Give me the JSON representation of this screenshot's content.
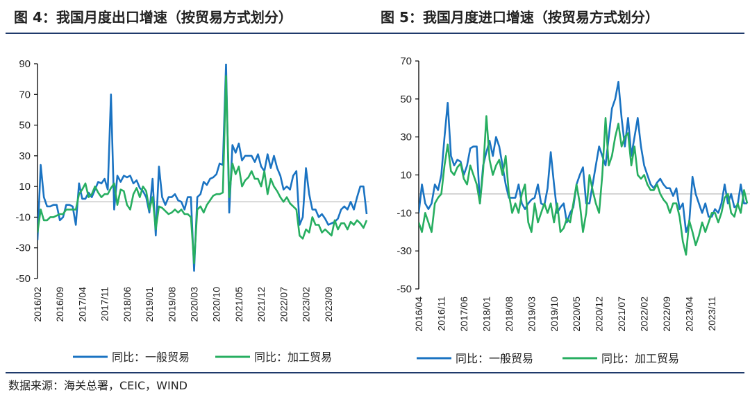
{
  "figure_left_title": "图 4：我国月度出口增速（按贸易方式划分）",
  "figure_right_title": "图 5：我国月度进口增速（按贸易方式划分）",
  "source": "数据来源：海关总署，CEIC，WIND",
  "colors": {
    "general": "#1a73c2",
    "processing": "#27ae60",
    "axis": "#000000",
    "zero": "#c8c8c8"
  },
  "chart_data": [
    {
      "type": "line",
      "title": "图 4：我国月度出口增速（按贸易方式划分）",
      "xlabel": "",
      "ylabel": "",
      "ylim": [
        -50,
        90
      ],
      "yticks": [
        90,
        70,
        50,
        30,
        10,
        -10,
        -30,
        -50
      ],
      "x_tick_labels": [
        "2016/02",
        "2016/09",
        "2017/04",
        "2017/11",
        "2018/06",
        "2019/01",
        "2019/08",
        "2020/03",
        "2020/10",
        "2021/05",
        "2021/12",
        "2022/07",
        "2023/02",
        "2023/09"
      ],
      "x_start": "2016/02",
      "grid": false,
      "legend": "bottom",
      "series": [
        {
          "name": "同比：一般贸易",
          "values": [
            -25,
            24,
            3,
            -3,
            -3,
            -2,
            -2,
            -12,
            -10,
            -2,
            -2,
            -3,
            -15,
            12,
            2,
            2,
            6,
            3,
            8,
            13,
            12,
            15,
            8,
            70,
            -5,
            17,
            13,
            17,
            16,
            17,
            12,
            14,
            9,
            7,
            3,
            -7,
            15,
            -22,
            23,
            3,
            -2,
            3,
            3,
            5,
            1,
            0,
            -5,
            3,
            3,
            -45,
            3,
            5,
            13,
            11,
            15,
            16,
            18,
            25,
            24,
            90,
            -7,
            37,
            32,
            38,
            27,
            30,
            30,
            30,
            26,
            31,
            23,
            20,
            31,
            22,
            30,
            22,
            17,
            8,
            10,
            8,
            17,
            20,
            -15,
            -10,
            22,
            5,
            -5,
            -5,
            -10,
            -8,
            -11,
            -15,
            -14,
            -13,
            -11,
            -5,
            -3,
            -5,
            0,
            -5,
            3,
            10,
            10,
            -8
          ]
        },
        {
          "name": "同比：加工贸易",
          "values": [
            -20,
            -5,
            -12,
            -12,
            -10,
            -10,
            -9,
            -8,
            -8,
            -5,
            -5,
            -5,
            -5,
            5,
            8,
            12,
            3,
            5,
            10,
            6,
            3,
            5,
            5,
            9,
            12,
            -2,
            8,
            7,
            -2,
            -5,
            5,
            9,
            3,
            10,
            7,
            -5,
            3,
            -18,
            -3,
            -4,
            -6,
            -8,
            -7,
            -5,
            -7,
            -5,
            -8,
            -8,
            -10,
            -40,
            -5,
            -3,
            -7,
            -2,
            1,
            4,
            5,
            5,
            6,
            82,
            3,
            25,
            18,
            23,
            10,
            14,
            16,
            20,
            15,
            15,
            10,
            20,
            5,
            15,
            10,
            7,
            3,
            0,
            3,
            -1,
            -3,
            -5,
            -22,
            -24,
            -18,
            -20,
            -10,
            -15,
            -15,
            -20,
            -18,
            -20,
            -22,
            -12,
            -18,
            -14,
            -14,
            -18,
            -13,
            -15,
            -12,
            -14,
            -17,
            -12
          ]
        }
      ]
    },
    {
      "type": "line",
      "title": "图 5：我国月度进口增速（按贸易方式划分）",
      "xlabel": "",
      "ylabel": "",
      "ylim": [
        -50,
        70
      ],
      "yticks": [
        70,
        50,
        30,
        10,
        -10,
        -30,
        -50
      ],
      "x_tick_labels": [
        "2016/04",
        "2016/11",
        "2017/06",
        "2018/01",
        "2018/08",
        "2019/03",
        "2019/10",
        "2020/05",
        "2020/12",
        "2021/07",
        "2022/02",
        "2022/09",
        "2023/04",
        "2023/11"
      ],
      "x_start": "2016/04",
      "grid": false,
      "legend": "bottom",
      "series": [
        {
          "name": "同比：一般贸易",
          "values": [
            -10,
            5,
            -5,
            -8,
            -5,
            5,
            2,
            10,
            30,
            48,
            20,
            15,
            18,
            17,
            10,
            15,
            24,
            25,
            25,
            -5,
            15,
            22,
            28,
            20,
            30,
            25,
            15,
            5,
            -2,
            -2,
            -2,
            5,
            -5,
            -8,
            -5,
            -3,
            -2,
            5,
            -5,
            -6,
            3,
            22,
            5,
            -10,
            -7,
            -5,
            -15,
            -10,
            -7,
            5,
            10,
            14,
            -5,
            -5,
            5,
            15,
            25,
            20,
            15,
            30,
            45,
            50,
            59,
            40,
            25,
            40,
            20,
            30,
            40,
            25,
            15,
            10,
            5,
            3,
            6,
            8,
            5,
            3,
            3,
            -1,
            3,
            -8,
            -5,
            -20,
            -15,
            9,
            0,
            -5,
            -10,
            -5,
            -12,
            -12,
            -8,
            -10,
            -5,
            5,
            -5,
            0,
            -7,
            -6,
            5,
            -5,
            -5
          ]
        },
        {
          "name": "同比：加工贸易",
          "values": [
            -15,
            -20,
            -10,
            -15,
            -20,
            -5,
            -2,
            0,
            15,
            26,
            12,
            10,
            14,
            16,
            8,
            5,
            15,
            10,
            5,
            -5,
            12,
            41,
            18,
            10,
            15,
            18,
            10,
            20,
            0,
            -10,
            -5,
            -10,
            0,
            5,
            -15,
            -20,
            -5,
            -15,
            -10,
            -5,
            -10,
            -5,
            -15,
            -5,
            -20,
            -18,
            -13,
            -15,
            -5,
            5,
            -5,
            -20,
            -10,
            10,
            2,
            -5,
            -10,
            10,
            40,
            15,
            20,
            30,
            37,
            25,
            30,
            32,
            15,
            25,
            10,
            8,
            10,
            5,
            2,
            2,
            5,
            0,
            -3,
            -5,
            -10,
            -5,
            -5,
            -12,
            -25,
            -32,
            -14,
            -20,
            -27,
            -22,
            -15,
            -20,
            -15,
            -10,
            -10,
            -15,
            -10,
            -2,
            0,
            -10,
            -12,
            -5,
            -10,
            2,
            -5
          ]
        }
      ]
    }
  ]
}
